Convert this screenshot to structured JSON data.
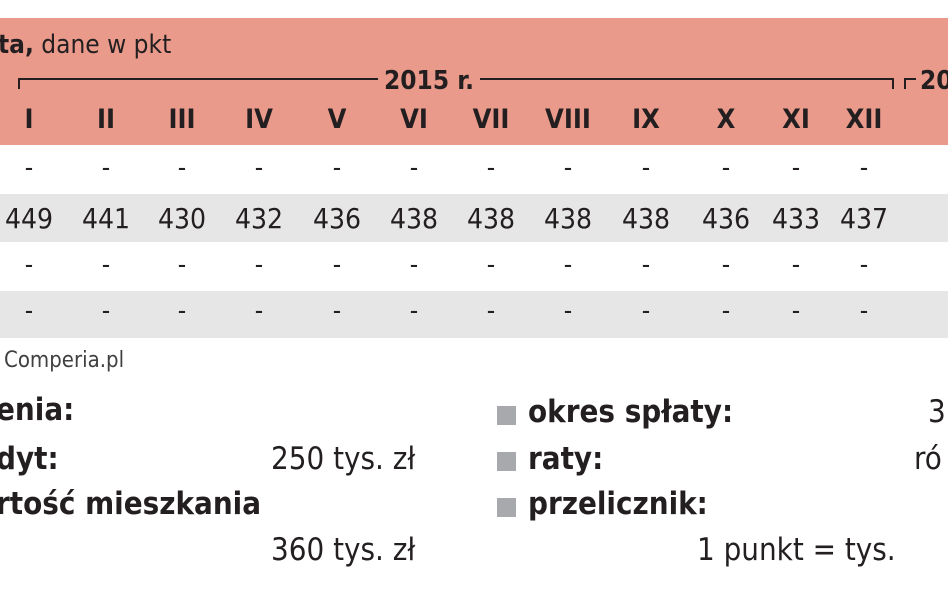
{
  "table": {
    "title_bold": "ta,",
    "title_rest": " dane w pkt",
    "year_main": "2015 r.",
    "year_next": "20",
    "months": [
      "I",
      "II",
      "III",
      "IV",
      "V",
      "VI",
      "VII",
      "VIII",
      "IX",
      "X",
      "XI",
      "XII"
    ],
    "rows": [
      [
        "-",
        "-",
        "-",
        "-",
        "-",
        "-",
        "-",
        "-",
        "-",
        "-",
        "-",
        "-"
      ],
      [
        "449",
        "441",
        "430",
        "432",
        "436",
        "438",
        "438",
        "438",
        "438",
        "436",
        "433",
        "437"
      ],
      [
        "-",
        "-",
        "-",
        "-",
        "-",
        "-",
        "-",
        "-",
        "-",
        "-",
        "-",
        "-"
      ],
      [
        "-",
        "-",
        "-",
        "-",
        "-",
        "-",
        "-",
        "-",
        "-",
        "-",
        "-",
        "-"
      ]
    ],
    "colors": {
      "header": "#ea9a8b",
      "stripe": "#e6e6e7",
      "bullet": "#a7a9ac"
    }
  },
  "source": "Comperia.pl",
  "assumptions": {
    "heading": "enia:",
    "loan_label": "dyt:",
    "loan_value": "250 tys. zł",
    "flat_label": "rtość mieszkania",
    "flat_value": "360 tys. zł",
    "period_label": "okres spłaty:",
    "period_value": "3",
    "installments_label": "raty:",
    "installments_value": "ró",
    "converter_label": "przelicznik:",
    "converter_value": "1 punkt =  tys."
  }
}
